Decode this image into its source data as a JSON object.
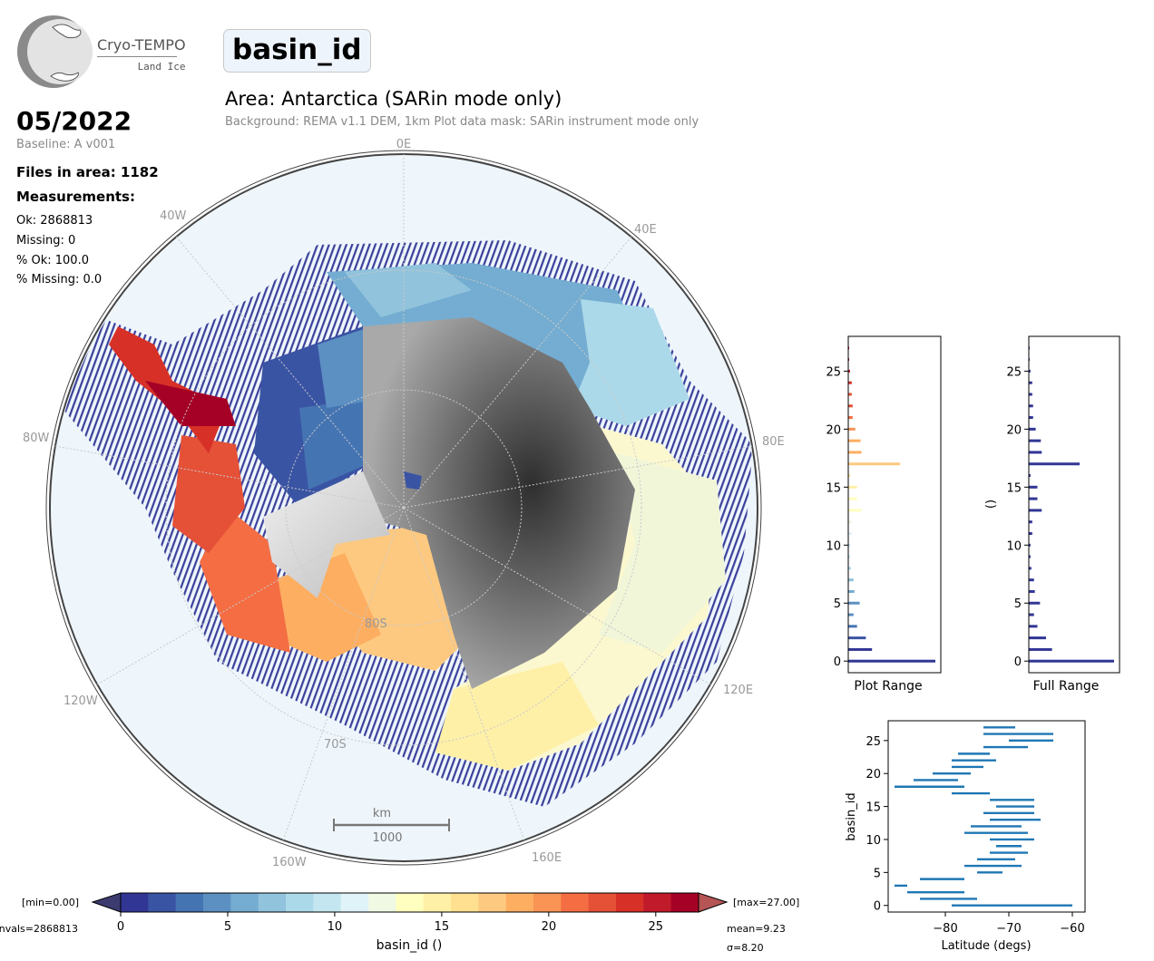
{
  "logo": {
    "name": "Cryo-TEMPO",
    "sub": "Land Ice"
  },
  "parameter": "basin_id",
  "area_title": "Area: Antarctica (SARin mode only)",
  "area_subtitle": "Background: REMA v1.1 DEM, 1km   Plot data mask: SARin instrument mode only",
  "date": "05/2022",
  "baseline": "Baseline: A v001",
  "files_in_area": "Files in area: 1182",
  "measurements_title": "Measurements:",
  "stats": [
    "Ok: 2868813",
    "Missing: 0",
    "% Ok: 100.0",
    "% Missing: 0.0"
  ],
  "map": {
    "longitude_labels": [
      "0E",
      "40E",
      "80E",
      "120E",
      "160E",
      "160W",
      "120W",
      "80W",
      "40W"
    ],
    "latitude_labels": [
      "80S",
      "70S"
    ],
    "scale_bar": {
      "unit": "km",
      "value": "1000"
    }
  },
  "colorbar": {
    "min_label": "[min=0.00]",
    "max_label": "[max=27.00]",
    "nvals_label": "nvals=2868813",
    "mean_label": "mean=9.23",
    "sigma_label": "σ=8.20",
    "label": "basin_id ()",
    "ticks": [
      "0",
      "5",
      "10",
      "15",
      "20",
      "25"
    ],
    "colors": [
      "#313695",
      "#3a54a4",
      "#4574b3",
      "#5c90c2",
      "#74add1",
      "#91c3dc",
      "#abd9e9",
      "#c4e6f0",
      "#e0f3f8",
      "#eff9e4",
      "#ffffbf",
      "#fff0a8",
      "#fee090",
      "#fdc980",
      "#fdae61",
      "#f99455",
      "#f46d43",
      "#e55137",
      "#d73027",
      "#c11a2b",
      "#a50026"
    ]
  },
  "hist_plot_range": {
    "xlabel": "Plot Range",
    "ylabel": "",
    "yticks": [
      "0",
      "5",
      "10",
      "15",
      "20",
      "25"
    ]
  },
  "hist_full_range": {
    "xlabel": "Full Range",
    "ylabel": "()",
    "yticks": [
      "0",
      "5",
      "10",
      "15",
      "20",
      "25"
    ]
  },
  "chart_data": [
    {
      "type": "bar",
      "orientation": "horizontal",
      "xlabel": "Plot Range",
      "ylabel": "",
      "ylim": [
        -1,
        28
      ],
      "categories": [
        0,
        1,
        2,
        3,
        4,
        5,
        6,
        7,
        8,
        9,
        10,
        11,
        12,
        13,
        14,
        15,
        16,
        17,
        18,
        19,
        20,
        21,
        22,
        23,
        24,
        25,
        26,
        27
      ],
      "values": [
        0.99,
        0.27,
        0.2,
        0.1,
        0.06,
        0.13,
        0.07,
        0.06,
        0.03,
        0.02,
        0.02,
        0.04,
        0.04,
        0.15,
        0.1,
        0.1,
        0.02,
        0.59,
        0.15,
        0.14,
        0.08,
        0.05,
        0.05,
        0.04,
        0.04,
        0.02,
        0.01,
        0.01
      ]
    },
    {
      "type": "bar",
      "orientation": "horizontal",
      "xlabel": "Full Range",
      "ylabel": "()",
      "ylim": [
        -1,
        28
      ],
      "categories": [
        0,
        1,
        2,
        3,
        4,
        5,
        6,
        7,
        8,
        9,
        10,
        11,
        12,
        13,
        14,
        15,
        16,
        17,
        18,
        19,
        20,
        21,
        22,
        23,
        24,
        25,
        26,
        27
      ],
      "values": [
        0.99,
        0.27,
        0.2,
        0.1,
        0.06,
        0.13,
        0.07,
        0.06,
        0.03,
        0.02,
        0.02,
        0.04,
        0.04,
        0.15,
        0.1,
        0.1,
        0.02,
        0.59,
        0.15,
        0.14,
        0.08,
        0.05,
        0.05,
        0.04,
        0.04,
        0.02,
        0.01,
        0.01
      ]
    },
    {
      "type": "range",
      "xlabel": "Latitude (degs)",
      "ylabel": "basin_id",
      "xlim": [
        -89,
        -58
      ],
      "ylim": [
        -1,
        28
      ],
      "xticks": [
        "−80",
        "−70",
        "−60"
      ],
      "yticks": [
        "0",
        "5",
        "10",
        "15",
        "20",
        "25"
      ],
      "ranges": [
        [
          -79,
          -60
        ],
        [
          -84,
          -75
        ],
        [
          -86,
          -77
        ],
        [
          -88,
          -86
        ],
        [
          -84,
          -77
        ],
        [
          -75,
          -71
        ],
        [
          -77,
          -68
        ],
        [
          -75,
          -69
        ],
        [
          -73,
          -67
        ],
        [
          -72,
          -68
        ],
        [
          -73,
          -66
        ],
        [
          -77,
          -67
        ],
        [
          -76,
          -68
        ],
        [
          -73,
          -65
        ],
        [
          -74,
          -66
        ],
        [
          -72,
          -66
        ],
        [
          -73,
          -66
        ],
        [
          -79,
          -73
        ],
        [
          -88,
          -77
        ],
        [
          -85,
          -78
        ],
        [
          -82,
          -76
        ],
        [
          -79,
          -74
        ],
        [
          -79,
          -72
        ],
        [
          -78,
          -73
        ],
        [
          -74,
          -67
        ],
        [
          -70,
          -63
        ],
        [
          -74,
          -63
        ],
        [
          -74,
          -69
        ]
      ]
    }
  ]
}
